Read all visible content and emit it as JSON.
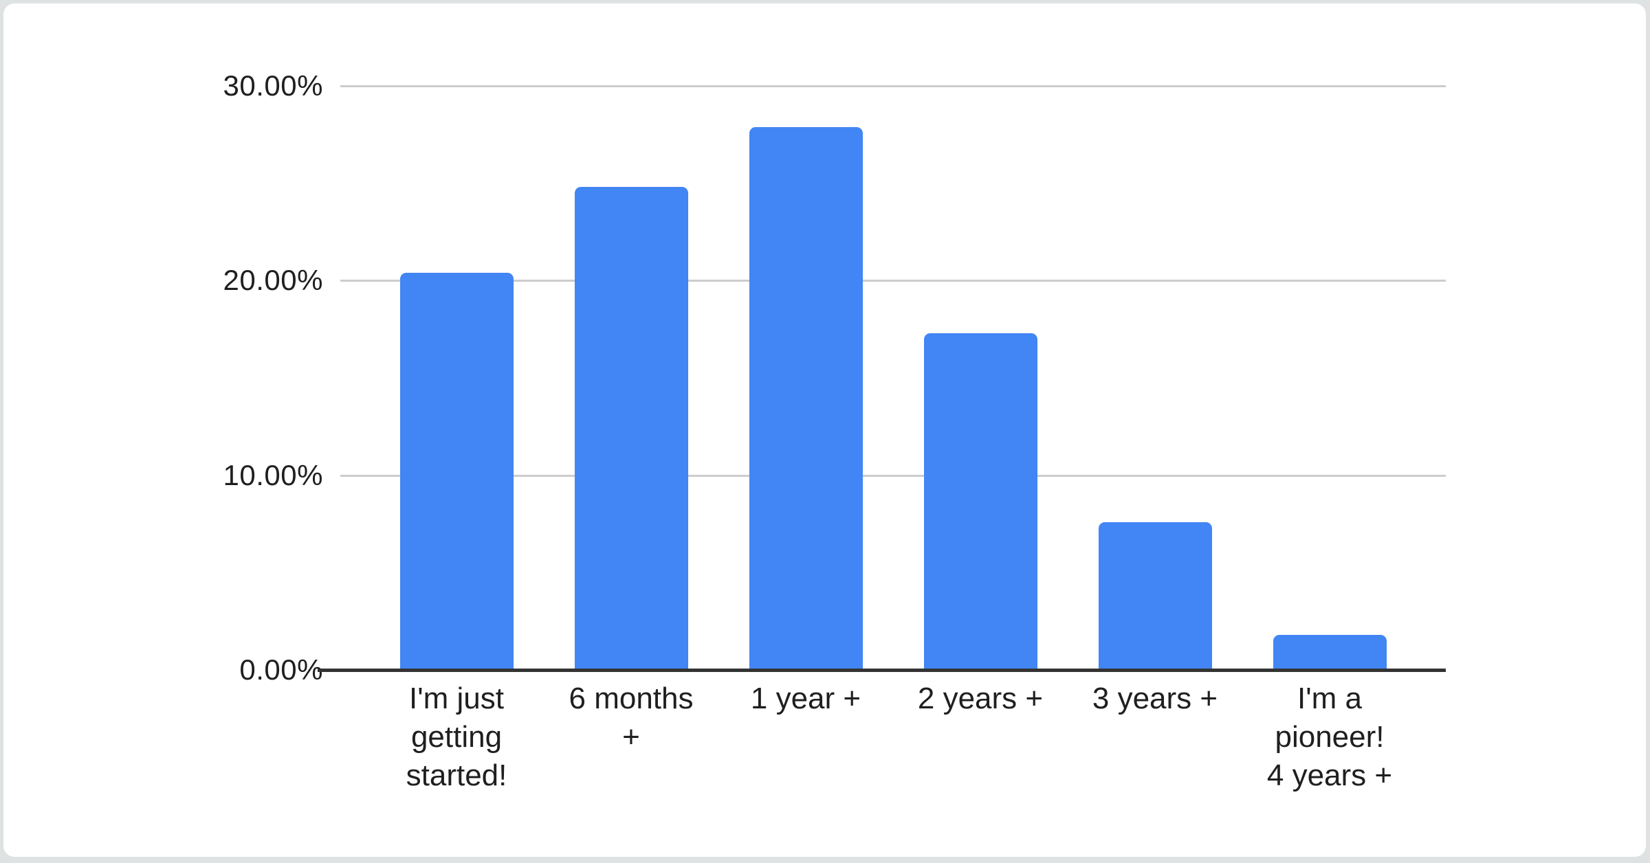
{
  "window": {
    "outer_background": "#dfe2e3",
    "card_background": "#ffffff"
  },
  "chart_data": {
    "type": "bar",
    "title": "",
    "categories": [
      "I'm just getting started!",
      "6 months +",
      "1 year +",
      "2 years +",
      "3 years +",
      "I'm a pioneer! 4 years +"
    ],
    "categories_wrapped": [
      "I'm just\ngetting\nstarted!",
      "6 months\n+",
      "1 year +",
      "2 years +",
      "3 years +",
      "I'm a\npioneer!\n4 years +"
    ],
    "values": [
      20.4,
      24.8,
      27.9,
      17.3,
      7.6,
      1.8
    ],
    "unit": "%",
    "xlabel": "",
    "ylabel": "",
    "ylim": [
      0,
      30
    ],
    "yticks": [
      {
        "value": 0,
        "label": "0.00%"
      },
      {
        "value": 10,
        "label": "10.00%"
      },
      {
        "value": 20,
        "label": "20.00%"
      },
      {
        "value": 30,
        "label": "30.00%"
      }
    ],
    "grid": true,
    "legend": "none",
    "colors": {
      "bar": "#4285f4",
      "gridline": "#cccccc",
      "axis_line": "#333333",
      "label_text": "#1f1f1f"
    }
  }
}
